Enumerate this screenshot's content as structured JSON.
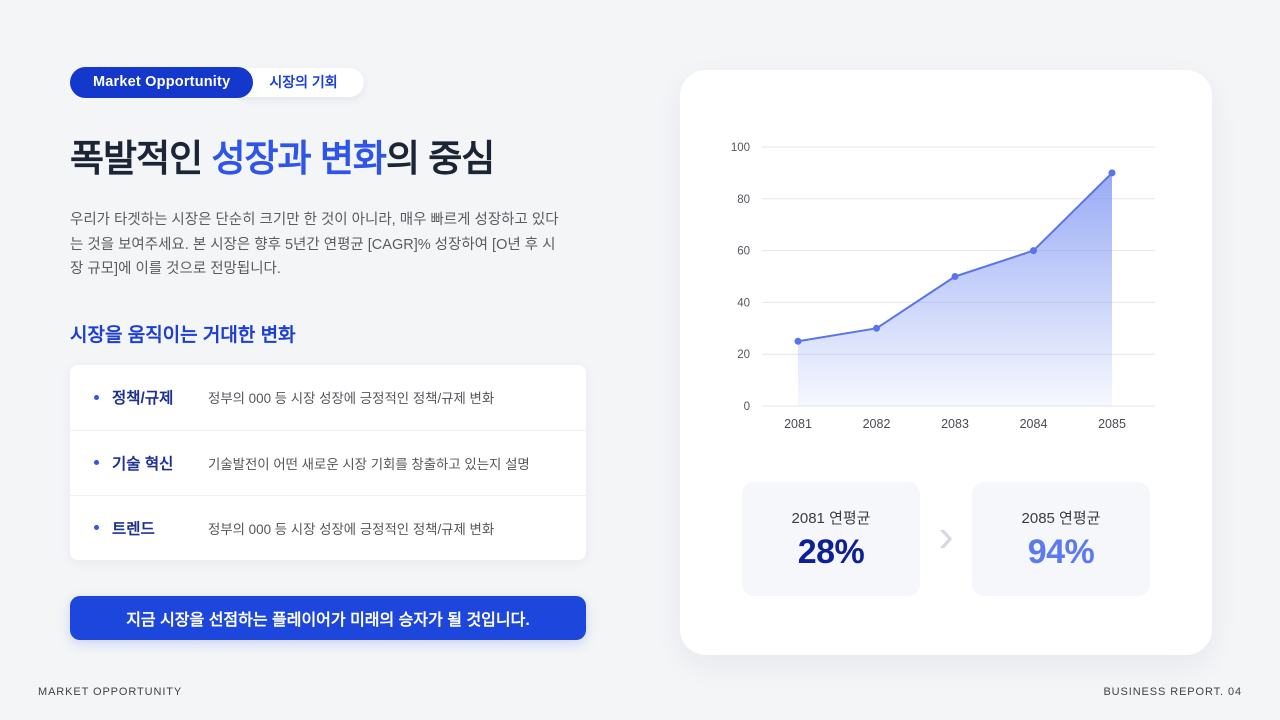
{
  "page": {
    "footer_left": "MARKET OPPORTUNITY",
    "footer_right": "BUSINESS REPORT. 04"
  },
  "header": {
    "badge_primary": "Market Opportunity",
    "badge_secondary": "시장의 기회",
    "title": {
      "pre": "폭발적인 ",
      "accent": "성장과 변화",
      "post": "의 중심"
    },
    "description": "우리가 타겟하는 시장은 단순히 크기만 한 것이 아니라, 매우 빠르게 성장하고 있다는 것을 보여주세요. 본 시장은 향후 5년간 연평균 [CAGR]% 성장하여 [O년 후 시장 규모]에 이를 것으로 전망됩니다."
  },
  "changes": {
    "heading": "시장을 움직이는 거대한 변화",
    "items": [
      {
        "label": "정책/규제",
        "description": "정부의 000 등 시장 성장에 긍정적인 정책/규제 변화"
      },
      {
        "label": "기술 혁신",
        "description": "기술발전이 어떤 새로운 시장 기회를 창출하고 있는지 설명"
      },
      {
        "label": "트렌드",
        "description": "정부의 000 등 시장 성장에 긍정적인 정책/규제 변화"
      }
    ]
  },
  "cta_label": "지금 시장을 선점하는 플레이어가 미래의 승자가 될 것입니다.",
  "chart_data": {
    "type": "area",
    "x": [
      "2081",
      "2082",
      "2083",
      "2084",
      "2085"
    ],
    "values": [
      25,
      30,
      50,
      60,
      90
    ],
    "yticks": [
      0,
      20,
      40,
      60,
      80,
      100
    ],
    "ylim": [
      0,
      100
    ],
    "grid": true,
    "legend": "none",
    "line_color": "#5b74ec",
    "fill_color": "#7b93f3"
  },
  "stats": {
    "left": {
      "label": "2081 연평균",
      "value": "28%"
    },
    "right": {
      "label": "2085 연평균",
      "value": "94%"
    }
  },
  "colors": {
    "background": "#f4f5f7",
    "primary_blue": "#1d46dd",
    "badge_blue": "#1438cb",
    "accent_blue": "#2e54e9",
    "navy_value": "#0f1f96",
    "light_blue_value": "#5b79f0"
  }
}
